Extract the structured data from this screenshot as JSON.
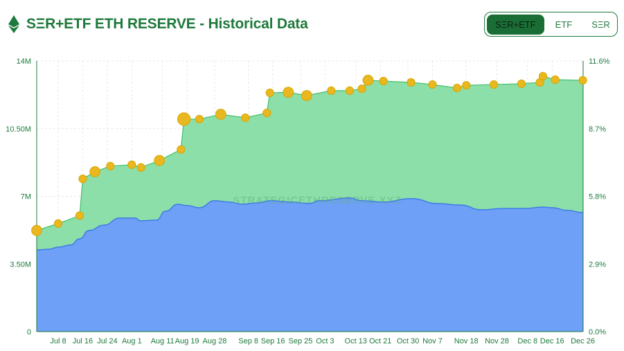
{
  "header": {
    "title": "SΞR+ETF ETH RESERVE - Historical Data",
    "logo_icon": "ethereum-icon"
  },
  "toggle": {
    "options": [
      "SΞR+ETF",
      "ETF",
      "SΞR"
    ],
    "active": 0
  },
  "watermark": "STRATEGICETHRESERVE.XYZ",
  "colors": {
    "accent": "#1e7a3c",
    "total_fill": "#8ddfaa",
    "etf_fill": "#6fa0f7",
    "etf_line": "#3f7be8",
    "marker": "#e9b820"
  },
  "chart_data": {
    "type": "area",
    "year": 2025,
    "ylim": [
      0,
      14000000
    ],
    "y_ticks": [
      "0",
      "3.50M",
      "7M",
      "10.50M",
      "14M"
    ],
    "y2lim": [
      0,
      11.6
    ],
    "y2_ticks": [
      "0.0%",
      "2.9%",
      "5.8%",
      "8.7%",
      "11.6%"
    ],
    "x_ticks": [
      "Jul 8",
      "Jul 16",
      "Jul 24",
      "Aug 1",
      "Aug 11",
      "Aug 19",
      "Aug 28",
      "Sep 8",
      "Sep 16",
      "Sep 25",
      "Oct 3",
      "Oct 13",
      "Oct 21",
      "Oct 30",
      "Nov 7",
      "Nov 18",
      "Nov 28",
      "Dec 8",
      "Dec 16",
      "Dec 26"
    ],
    "grid": true,
    "series": [
      {
        "key": "total",
        "points": [
          [
            "Jul 1",
            5.23
          ],
          [
            "Jul 8",
            5.59
          ],
          [
            "Jul 15",
            6.0
          ],
          [
            "Jul 16",
            7.9
          ],
          [
            "Jul 20",
            8.27
          ],
          [
            "Jul 25",
            8.56
          ],
          [
            "Aug 1",
            8.63
          ],
          [
            "Aug 4",
            8.49
          ],
          [
            "Aug 10",
            8.85
          ],
          [
            "Aug 17",
            9.42
          ],
          [
            "Aug 18",
            10.99
          ],
          [
            "Aug 23",
            10.99
          ],
          [
            "Aug 30",
            11.24
          ],
          [
            "Sep 7",
            11.06
          ],
          [
            "Sep 14",
            11.31
          ],
          [
            "Sep 15",
            12.35
          ],
          [
            "Sep 21",
            12.38
          ],
          [
            "Sep 27",
            12.21
          ],
          [
            "Oct 5",
            12.46
          ],
          [
            "Oct 11",
            12.46
          ],
          [
            "Oct 15",
            12.56
          ],
          [
            "Oct 17",
            13.0
          ],
          [
            "Oct 22",
            12.96
          ],
          [
            "Oct 31",
            12.89
          ],
          [
            "Nov 7",
            12.78
          ],
          [
            "Nov 15",
            12.6
          ],
          [
            "Nov 18",
            12.74
          ],
          [
            "Nov 27",
            12.78
          ],
          [
            "Dec 6",
            12.82
          ],
          [
            "Dec 12",
            12.89
          ],
          [
            "Dec 13",
            13.21
          ],
          [
            "Dec 17",
            13.03
          ],
          [
            "Dec 26",
            13.0
          ]
        ],
        "marker_sizes": [
          3,
          2,
          2,
          2,
          3,
          2,
          2,
          2,
          3,
          2,
          4,
          2,
          3,
          2,
          2,
          2,
          3,
          3,
          2,
          2,
          2,
          3,
          2,
          2,
          2,
          2,
          2,
          2,
          2,
          2,
          2,
          2,
          2
        ]
      },
      {
        "key": "etf",
        "points": [
          [
            "Jul 1",
            4.23
          ],
          [
            "Jul 5",
            4.26
          ],
          [
            "Jul 8",
            4.37
          ],
          [
            "Jul 12",
            4.48
          ],
          [
            "Jul 15",
            4.8
          ],
          [
            "Jul 18",
            5.23
          ],
          [
            "Jul 23",
            5.51
          ],
          [
            "Jul 28",
            5.87
          ],
          [
            "Aug 2",
            5.87
          ],
          [
            "Aug 4",
            5.73
          ],
          [
            "Aug 9",
            5.77
          ],
          [
            "Aug 12",
            6.23
          ],
          [
            "Aug 16",
            6.59
          ],
          [
            "Aug 19",
            6.52
          ],
          [
            "Aug 23",
            6.41
          ],
          [
            "Aug 28",
            6.77
          ],
          [
            "Sep 2",
            6.7
          ],
          [
            "Sep 6",
            6.59
          ],
          [
            "Sep 11",
            6.66
          ],
          [
            "Sep 15",
            6.77
          ],
          [
            "Sep 22",
            6.7
          ],
          [
            "Sep 28",
            6.63
          ],
          [
            "Oct 1",
            6.77
          ],
          [
            "Oct 11",
            6.91
          ],
          [
            "Oct 15",
            6.77
          ],
          [
            "Oct 22",
            6.7
          ],
          [
            "Oct 31",
            6.88
          ],
          [
            "Nov 9",
            6.62
          ],
          [
            "Nov 16",
            6.55
          ],
          [
            "Nov 23",
            6.3
          ],
          [
            "Nov 30",
            6.37
          ],
          [
            "Dec 7",
            6.37
          ],
          [
            "Dec 13",
            6.44
          ],
          [
            "Dec 16",
            6.41
          ],
          [
            "Dec 21",
            6.27
          ],
          [
            "Dec 26",
            6.16
          ]
        ]
      }
    ]
  }
}
